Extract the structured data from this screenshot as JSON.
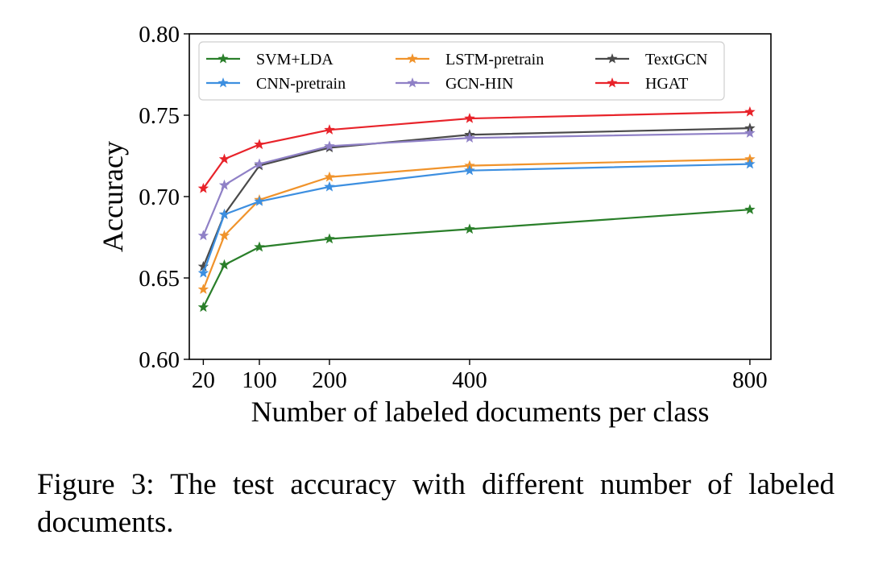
{
  "caption": "Figure 3: The test accuracy with different number of labeled documents.",
  "chart_data": {
    "type": "line",
    "title": "",
    "xlabel": "Number of labeled documents per class",
    "ylabel": "Accuracy",
    "xlim": [
      0,
      830
    ],
    "ylim": [
      0.6,
      0.8
    ],
    "xticks": [
      20,
      100,
      200,
      400,
      800
    ],
    "xtick_labels": [
      "20",
      "100",
      "200",
      "400",
      "800"
    ],
    "yticks": [
      0.6,
      0.65,
      0.7,
      0.75,
      0.8
    ],
    "ytick_labels": [
      "0.60",
      "0.65",
      "0.70",
      "0.75",
      "0.80"
    ],
    "grid": false,
    "legend_position": "top",
    "marker": "star",
    "x": [
      20,
      50,
      100,
      200,
      400,
      800
    ],
    "series": [
      {
        "name": "SVM+LDA",
        "color": "#2a7f2a",
        "values": [
          0.632,
          0.658,
          0.669,
          0.674,
          0.68,
          0.692
        ]
      },
      {
        "name": "LSTM-pretrain",
        "color": "#f0932b",
        "values": [
          0.643,
          0.676,
          0.698,
          0.712,
          0.719,
          0.723
        ]
      },
      {
        "name": "TextGCN",
        "color": "#4a4a4a",
        "values": [
          0.657,
          0.689,
          0.719,
          0.73,
          0.738,
          0.742
        ]
      },
      {
        "name": "CNN-pretrain",
        "color": "#3d8fe0",
        "values": [
          0.653,
          0.689,
          0.697,
          0.706,
          0.716,
          0.72
        ]
      },
      {
        "name": "GCN-HIN",
        "color": "#8f80c6",
        "values": [
          0.676,
          0.707,
          0.72,
          0.731,
          0.736,
          0.739
        ]
      },
      {
        "name": "HGAT",
        "color": "#e8232a",
        "values": [
          0.705,
          0.723,
          0.732,
          0.741,
          0.748,
          0.752
        ]
      }
    ]
  }
}
